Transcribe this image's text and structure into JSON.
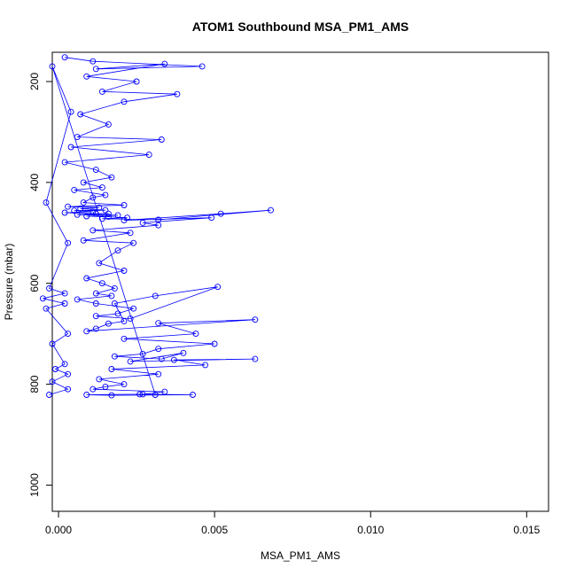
{
  "chart_data": {
    "type": "line",
    "title": "ATOM1 Southbound MSA_PM1_AMS",
    "xlabel": "MSA_PM1_AMS",
    "ylabel": "Pressure (mbar)",
    "xlim": [
      -0.0002,
      0.0157
    ],
    "ylim": [
      1052,
      142
    ],
    "y_inverted": true,
    "x_ticks": [
      0.0,
      0.005,
      0.01,
      0.015
    ],
    "x_tick_labels": [
      "0.000",
      "0.005",
      "0.010",
      "0.015"
    ],
    "y_ticks": [
      200,
      400,
      600,
      800,
      1000
    ],
    "y_tick_labels": [
      "200",
      "400",
      "600",
      "800",
      "1000"
    ],
    "grid": false,
    "marker": "open-circle",
    "line_color": "#0000ff",
    "point_color": "#0000ff",
    "series": [
      {
        "x": [
          0.0002,
          0.0011,
          0.0046,
          0.0012,
          0.0034,
          0.0009,
          0.0025,
          0.0014,
          0.0038,
          0.0021,
          0.0007,
          0.0016,
          0.0006,
          0.0033,
          0.0004,
          0.0029,
          0.0002,
          0.0012,
          0.0017,
          0.0008,
          0.0014,
          0.0005,
          0.0015,
          0.0011,
          0.0008,
          0.0021,
          0.0003,
          0.0013,
          0.0007,
          0.0015,
          0.0005,
          0.0011,
          0.0002,
          0.0012,
          0.0016,
          0.0006,
          0.0019,
          0.0009,
          0.0016,
          0.0022,
          0.0014,
          0.0032,
          0.0068,
          0.0052,
          0.0021,
          0.0049,
          0.0027,
          0.0032,
          0.0011,
          0.0023,
          0.0008,
          0.0024,
          0.0019,
          0.0013,
          0.0021,
          0.0009,
          0.0014,
          0.0018,
          0.0012,
          0.0017,
          0.0006,
          0.0012,
          0.0024,
          0.0019,
          0.0012,
          0.0023,
          0.0051,
          0.0031,
          0.0018,
          0.0021,
          0.0016,
          0.0012,
          0.0009,
          0.0063,
          0.0032,
          0.0044,
          0.0021,
          0.005,
          0.0032,
          0.0027,
          0.0018,
          0.0033,
          0.004,
          0.0023,
          0.0063,
          0.0037,
          0.0047,
          0.0017,
          0.0032,
          0.0013,
          0.0021,
          0.0015,
          0.0011,
          0.0034,
          0.0027,
          0.0043,
          0.0017,
          0.0009,
          0.0026,
          0.0031,
          -0.0002,
          0.0004,
          -0.0004,
          0.0003,
          -0.0003,
          0.0002,
          -0.0005,
          0.0002,
          -0.0004,
          0.0003,
          -0.0002,
          0.0002,
          -0.0001,
          0.0003,
          -0.0002,
          0.0003,
          -0.0003
        ],
        "y": [
          152,
          160,
          170,
          175,
          165,
          190,
          200,
          220,
          225,
          240,
          265,
          285,
          310,
          315,
          330,
          345,
          360,
          375,
          390,
          400,
          410,
          415,
          425,
          430,
          440,
          445,
          448,
          450,
          452,
          455,
          456,
          458,
          460,
          462,
          462,
          464,
          465,
          467,
          468,
          470,
          472,
          474,
          455,
          462,
          475,
          470,
          480,
          485,
          495,
          500,
          515,
          520,
          535,
          560,
          575,
          590,
          600,
          610,
          620,
          625,
          632,
          640,
          650,
          660,
          665,
          670,
          607,
          625,
          640,
          675,
          680,
          690,
          695,
          672,
          679,
          700,
          710,
          720,
          730,
          740,
          745,
          750,
          738,
          755,
          750,
          752,
          762,
          770,
          780,
          790,
          800,
          805,
          810,
          815,
          820,
          821,
          822,
          821,
          820,
          821,
          170,
          260,
          440,
          520,
          610,
          620,
          630,
          640,
          650,
          700,
          720,
          760,
          770,
          780,
          795,
          810,
          821
        ]
      }
    ]
  }
}
